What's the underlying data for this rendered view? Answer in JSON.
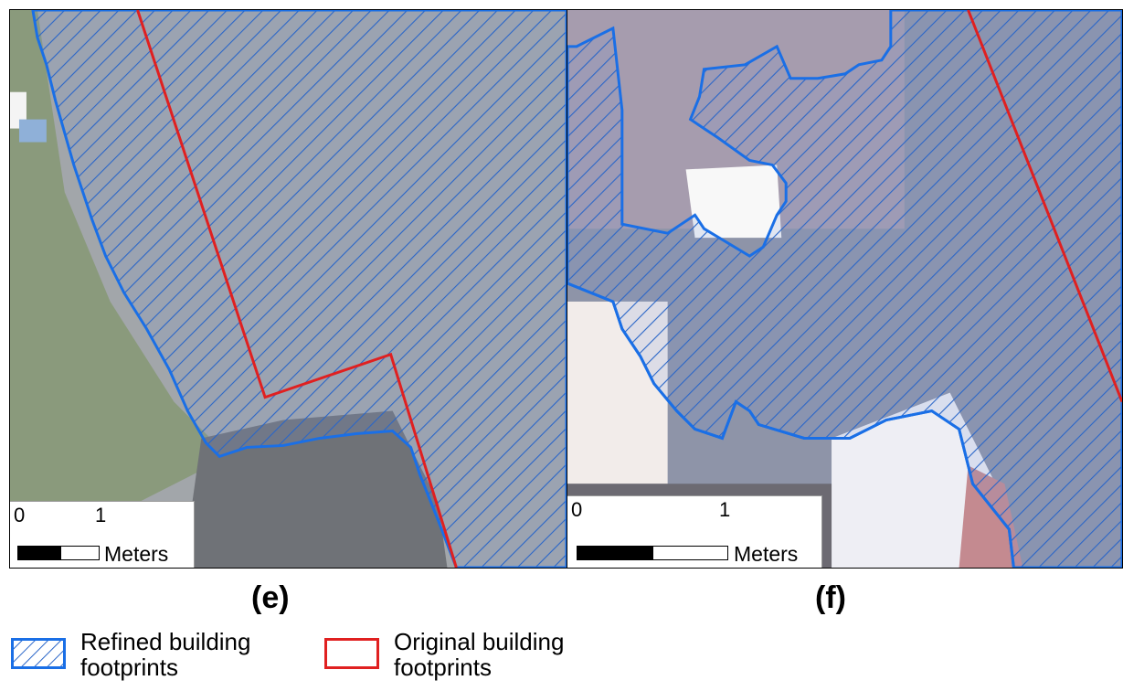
{
  "panels": [
    {
      "label": "(e)",
      "scale": {
        "tick_start": "0",
        "tick_end": "1",
        "unit": "Meters"
      }
    },
    {
      "label": "(f)",
      "scale": {
        "tick_start": "0",
        "tick_end": "1",
        "unit": "Meters"
      }
    }
  ],
  "legend": {
    "refined": {
      "label": "Refined building footprints",
      "color": "#1a6fe6"
    },
    "original": {
      "label": "Original building footprints",
      "color": "#e02020"
    }
  }
}
